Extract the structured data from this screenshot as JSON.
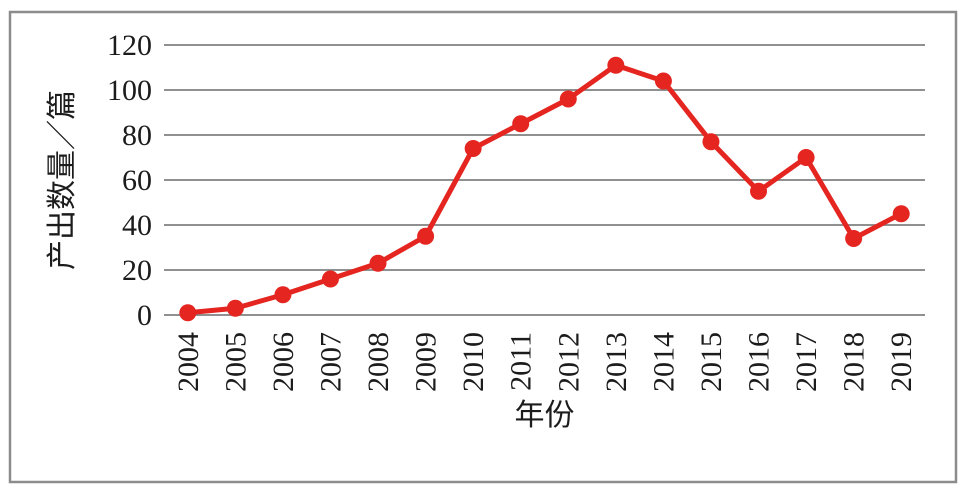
{
  "chart_data": {
    "type": "line",
    "title": "",
    "xlabel": "年份",
    "ylabel": "产出数量／篇",
    "categories": [
      "2004",
      "2005",
      "2006",
      "2007",
      "2008",
      "2009",
      "2010",
      "2011",
      "2012",
      "2013",
      "2014",
      "2015",
      "2016",
      "2017",
      "2018",
      "2019"
    ],
    "series": [
      {
        "name": "产出数量",
        "values": [
          1,
          3,
          9,
          16,
          23,
          35,
          74,
          85,
          96,
          111,
          104,
          77,
          55,
          70,
          34,
          45
        ]
      }
    ],
    "yticks": [
      0,
      20,
      40,
      60,
      80,
      100,
      120
    ],
    "ylim": [
      0,
      120
    ],
    "grid": "horizontal-only",
    "legend_position": "none",
    "marker": "circle"
  },
  "colors": {
    "series_red": "#e42520",
    "gridline_gray": "#808080",
    "frame_gray": "#8c8c8c",
    "text_black": "#1c1c1c",
    "background": "#ffffff"
  }
}
